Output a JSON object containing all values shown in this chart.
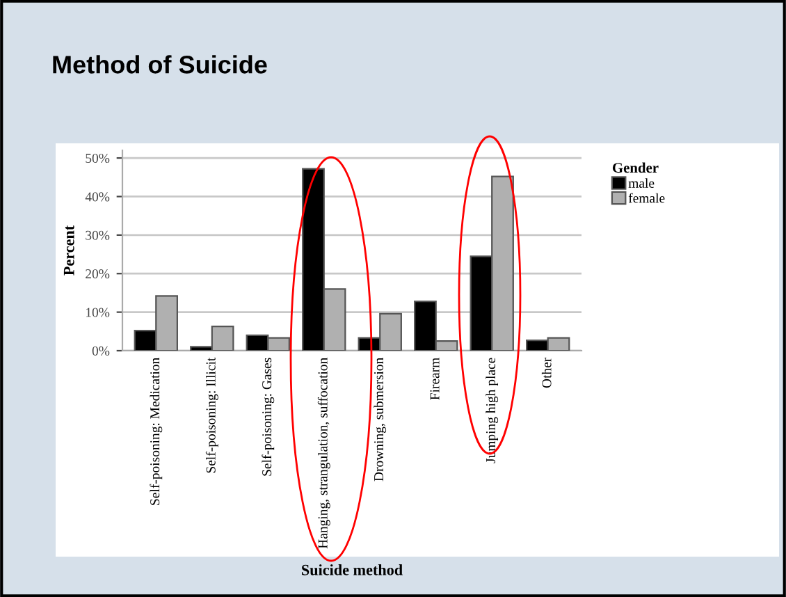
{
  "chart_data": {
    "type": "bar",
    "title": "Method of Suicide",
    "xlabel": "Suicide method",
    "ylabel": "Percent",
    "legend_title": "Gender",
    "categories": [
      "Self-poisoning: Medication",
      "Self-poisoning: Illicit",
      "Self-poisoning: Gases",
      "Hanging, strangulation, suffocation",
      "Drowning, submersion",
      "Firearm",
      "Jumping high place",
      "Other"
    ],
    "series": [
      {
        "name": "male",
        "color": "#000000",
        "values": [
          5.2,
          1.0,
          4.0,
          47.2,
          3.3,
          12.8,
          24.5,
          2.7
        ]
      },
      {
        "name": "female",
        "color": "#b0b0b0",
        "values": [
          14.2,
          6.3,
          3.3,
          16.0,
          9.6,
          2.5,
          45.2,
          3.3
        ]
      }
    ],
    "ylim": [
      0,
      52
    ],
    "yticks": [
      {
        "value": 0,
        "label": "0%"
      },
      {
        "value": 10,
        "label": "10%"
      },
      {
        "value": 20,
        "label": "20%"
      },
      {
        "value": 30,
        "label": "30%"
      },
      {
        "value": 40,
        "label": "40%"
      },
      {
        "value": 50,
        "label": "50%"
      }
    ],
    "grid": "y",
    "legend": "right"
  }
}
